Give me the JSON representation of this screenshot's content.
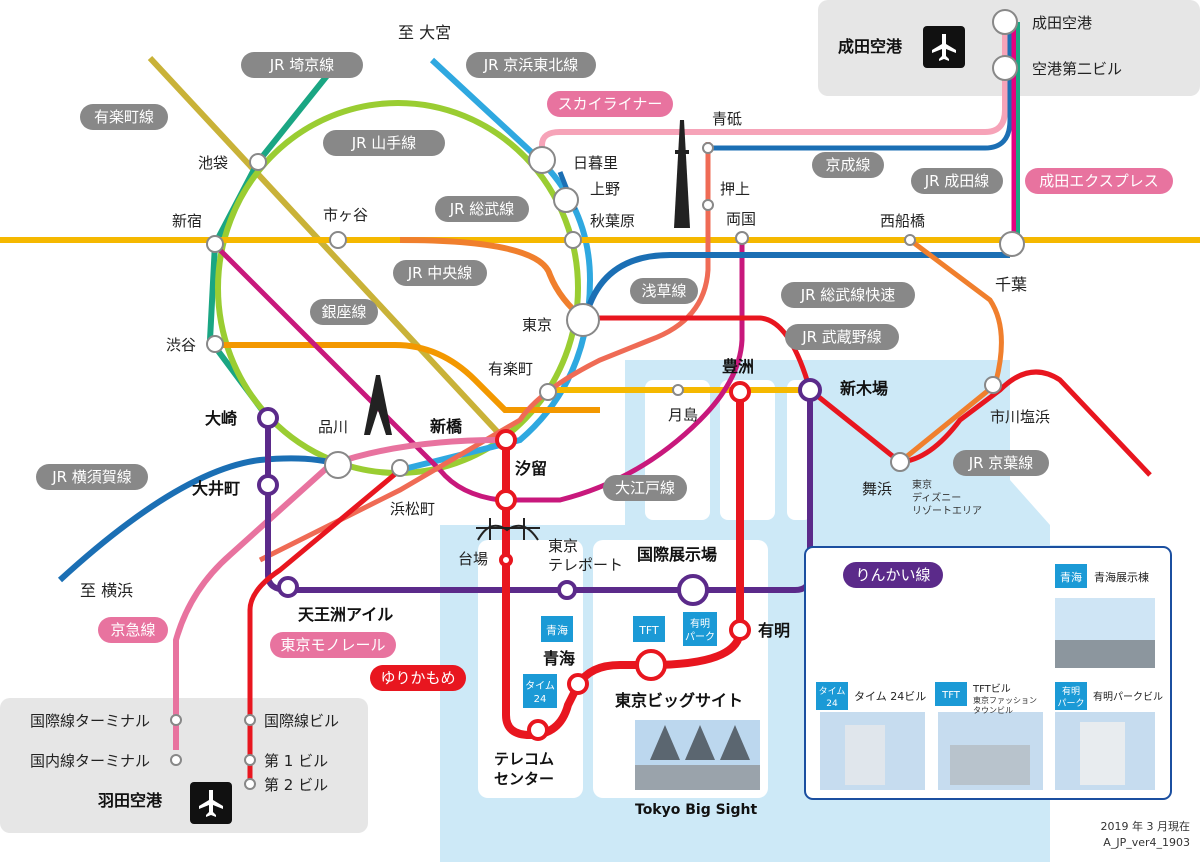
{
  "directions": {
    "omiya": "至 大宮",
    "yokohama": "至 横浜"
  },
  "lines": {
    "yurakucho": "有楽町線",
    "saikyo": "JR 埼京線",
    "keihin_tohoku": "JR 京浜東北線",
    "yamanote": "JR 山手線",
    "skyliner": "スカイライナー",
    "keisei": "京成線",
    "narita_line": "JR 成田線",
    "narita_express": "成田エクスプレス",
    "sobu": "JR 総武線",
    "chuo": "JR 中央線",
    "ginza": "銀座線",
    "asakusa": "浅草線",
    "sobu_rapid": "JR 総武線快速",
    "musashino": "JR 武蔵野線",
    "keiyo": "JR 京葉線",
    "oedo": "大江戸線",
    "yokosuka": "JR 横須賀線",
    "rinkai": "りんかい線",
    "keikyu": "京急線",
    "monorail": "東京モノレール",
    "yurikamome": "ゆりかもめ"
  },
  "stations": {
    "narita_airport": "成田空港",
    "narita_terminal1": "成田空港",
    "narita_terminal2": "空港第二ビル",
    "aoto": "青砥",
    "nippori": "日暮里",
    "ueno": "上野",
    "akihabara": "秋葉原",
    "oshiage": "押上",
    "ryogoku": "両国",
    "nishifunabashi": "西船橋",
    "chiba": "千葉",
    "ikebukuro": "池袋",
    "shinjuku": "新宿",
    "ichigaya": "市ヶ谷",
    "tokyo": "東京",
    "shibuya": "渋谷",
    "yurakucho_st": "有楽町",
    "osaki": "大崎",
    "shinagawa": "品川",
    "shimbashi": "新橋",
    "tsukishima": "月島",
    "toyosu": "豊洲",
    "shinkiba": "新木場",
    "ichikawashiohama": "市川塩浜",
    "maihama": "舞浜",
    "disney1": "東京",
    "disney2": "ディズニー",
    "disney3": "リゾートエリア",
    "oimachi": "大井町",
    "shiodome": "汐留",
    "hamamatsucho": "浜松町",
    "daiba": "台場",
    "teleport1": "東京",
    "teleport2": "テレポート",
    "kokusai_tenjijo": "国際展示場",
    "tennozu_isle": "天王洲アイル",
    "ariake": "有明",
    "aomi": "青海",
    "big_sight": "東京ビッグサイト",
    "telecom1": "テレコム",
    "telecom2": "センター",
    "haneda_airport": "羽田空港",
    "intl_terminal": "国際線ターミナル",
    "dom_terminal": "国内線ターミナル",
    "intl_bldg": "国際線ビル",
    "terminal1": "第 1 ビル",
    "terminal2": "第 2 ビル"
  },
  "venue_badges": {
    "aomi": "青海",
    "tft": "TFT",
    "ariake_park_1": "有明",
    "ariake_park_2": "パーク",
    "time24_1": "タイム",
    "time24_2": "24"
  },
  "big_sight_caption": "Tokyo Big Sight",
  "legend": {
    "aomi_badge": "青海",
    "aomi_label": "青海展示棟",
    "time_badge_1": "タイム",
    "time_badge_2": "24",
    "time_label": "タイム 24ビル",
    "tft_badge": "TFT",
    "tft_label_1": "TFTビル",
    "tft_label_2": "東京ファッション",
    "tft_label_3": "タウンビル",
    "park_badge_1": "有明",
    "park_badge_2": "パーク",
    "park_label": "有明パークビル"
  },
  "footer": {
    "date": "2019 年 3 月現在",
    "code": "A_JP_ver4_1903"
  },
  "colors": {
    "yamanote": "#9acd32",
    "keihin_tohoku": "#2fa8e0",
    "chuo": "#f5b800",
    "saikyo": "#1aa683",
    "sobu_rapid": "#1b6fb4",
    "yurikamome": "#e8161f",
    "rinkai": "#5b2a8a",
    "oedo": "#c8187c",
    "asakusa": "#ef6b55",
    "keikyu": "#e8739f",
    "skyliner": "#f6a3b8",
    "keiyo": "#e8161f",
    "musashino": "#f07f2d",
    "yurakucho_line": "#c9b238",
    "ginza": "#f39800",
    "narita_express": "#e4007f",
    "water": "#cde9f7"
  }
}
